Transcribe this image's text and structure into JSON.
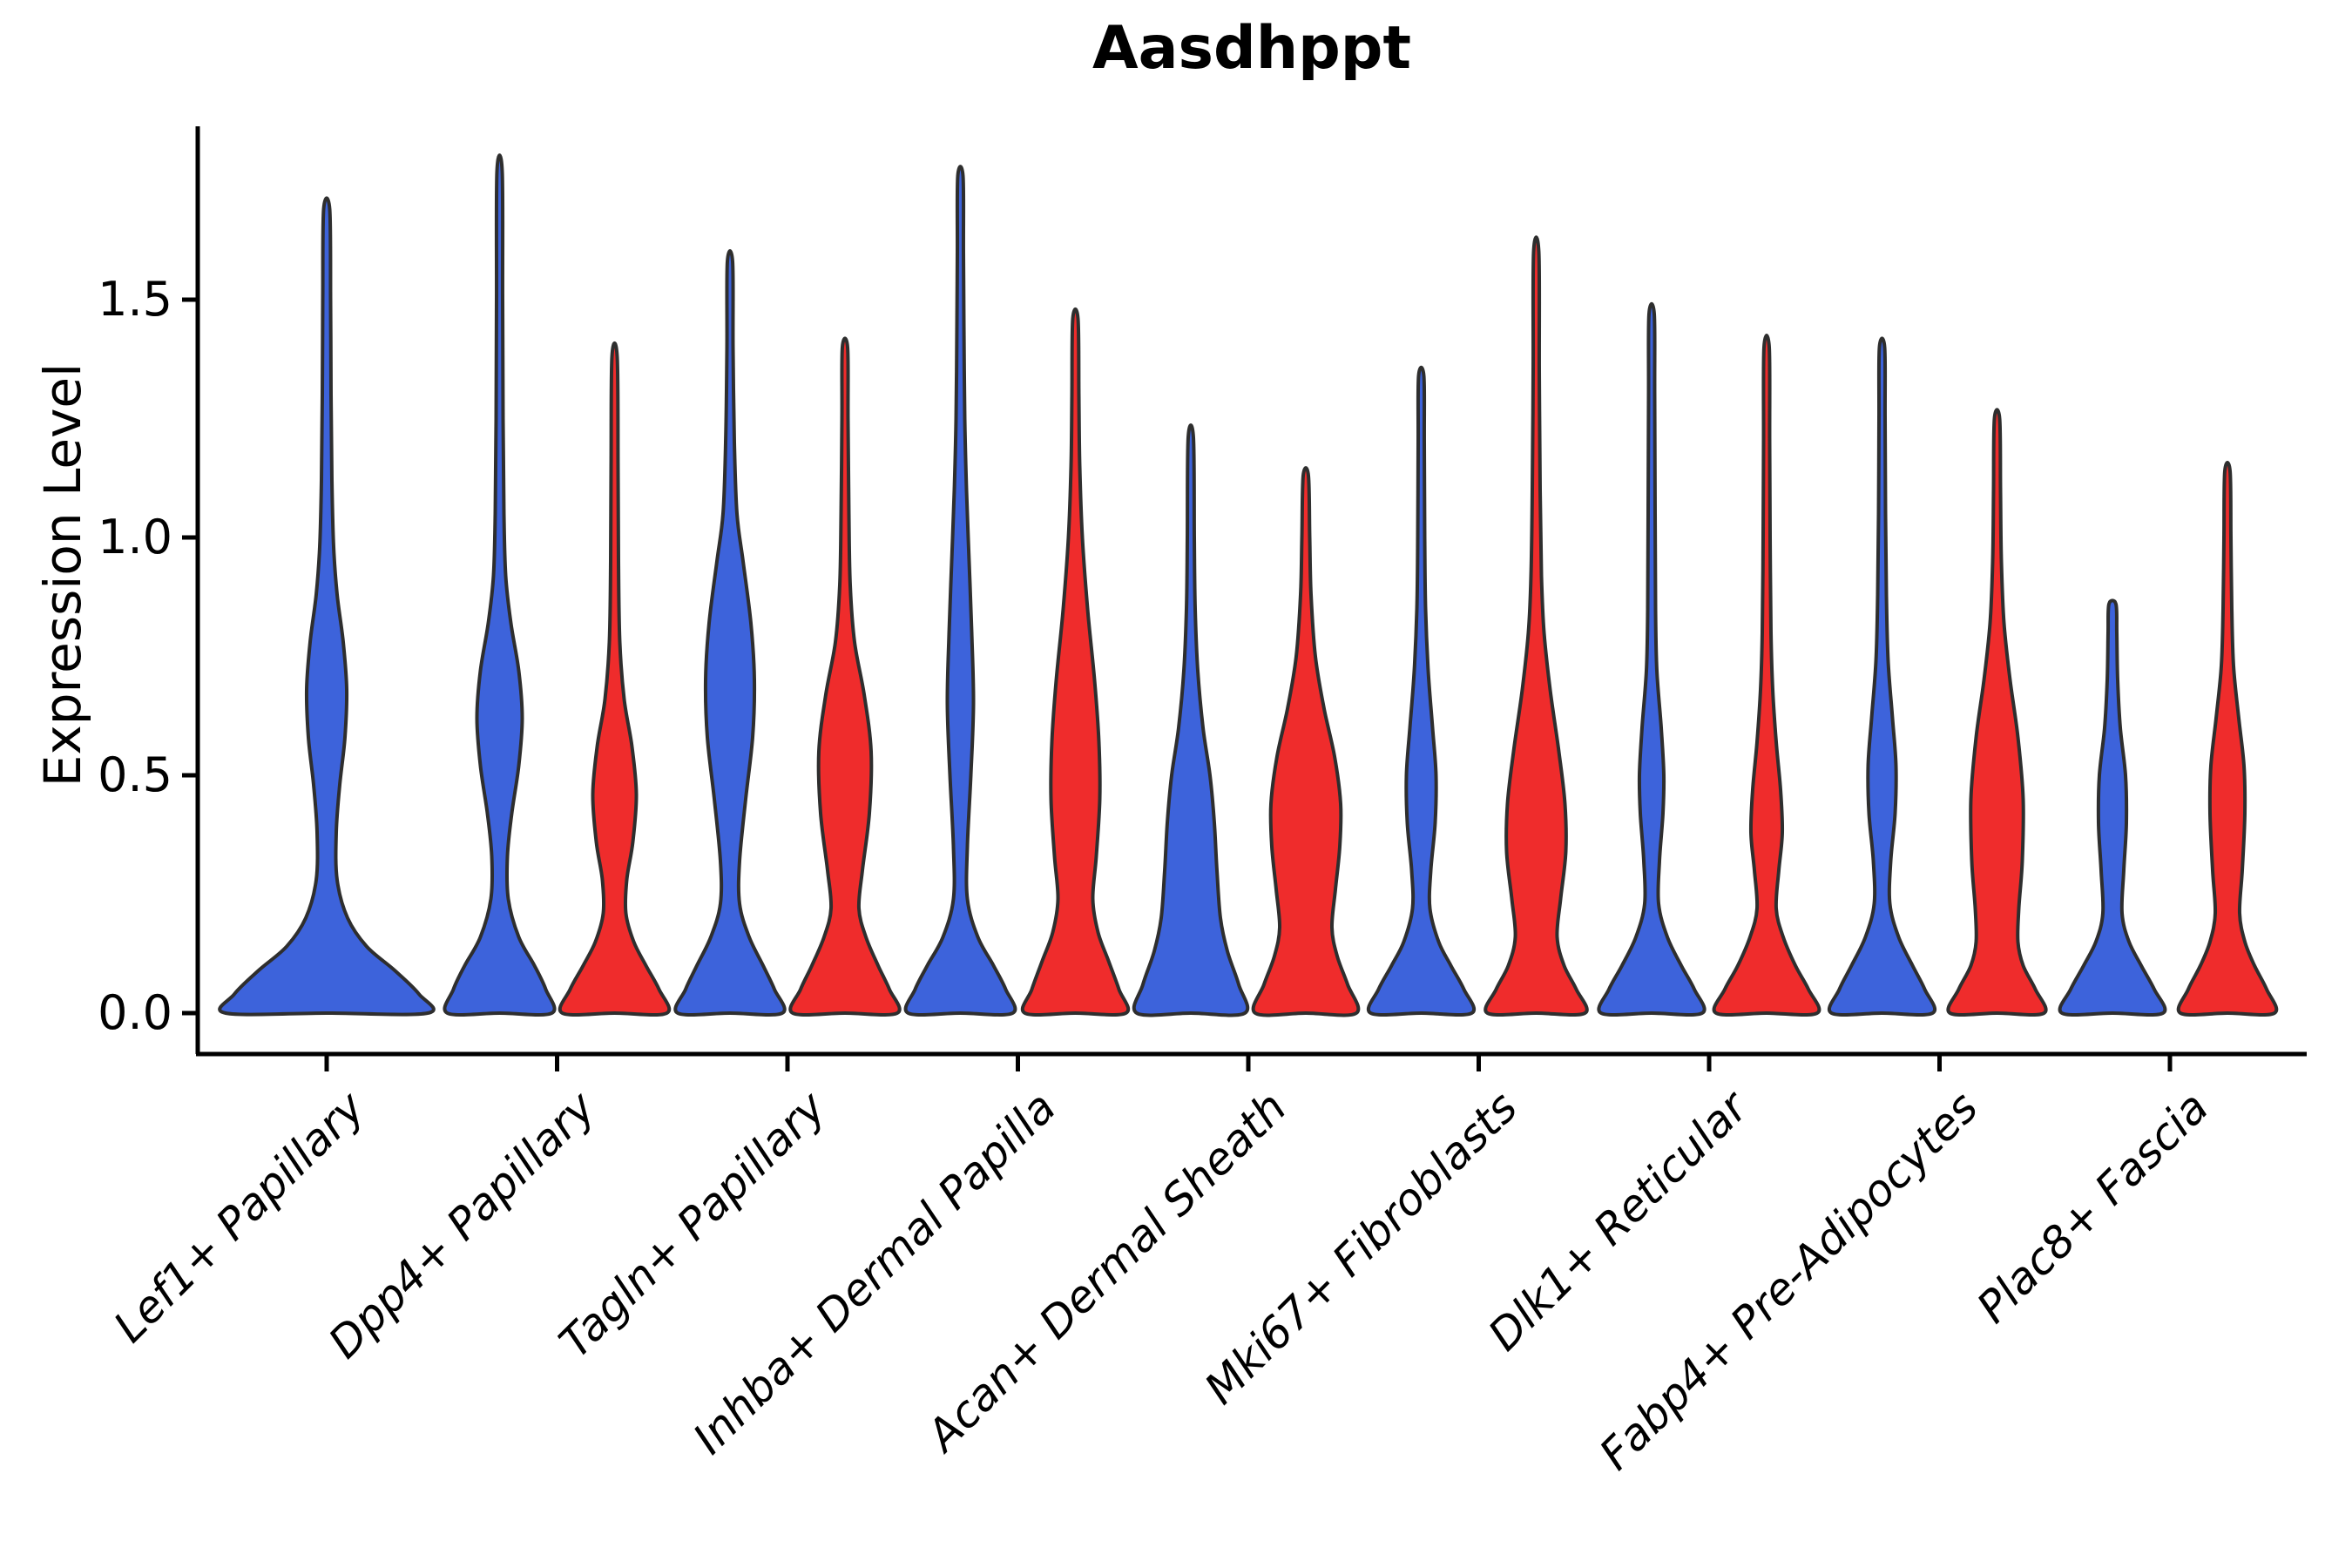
{
  "figure": {
    "title": "Aasdhppt",
    "ylabel": "Expression Level"
  },
  "chart_data": {
    "type": "violin",
    "title": "Aasdhppt",
    "xlabel": "",
    "ylabel": "Expression Level",
    "ylim": [
      -0.09,
      1.86
    ],
    "grid": false,
    "legend": "none",
    "x_tick_rotation": 45,
    "yticks": [
      {
        "value": 0.0,
        "label": "0.0"
      },
      {
        "value": 0.5,
        "label": "0.5"
      },
      {
        "value": 1.0,
        "label": "1.0"
      },
      {
        "value": 1.5,
        "label": "1.5"
      }
    ],
    "categories": [
      "Lef1+ Papillary",
      "Dpp4+ Papillary",
      "Tagln+ Papillary",
      "Inhba+ Dermal Papilla",
      "Acan+ Dermal Sheath",
      "Mki67+ Fibroblasts",
      "Dlk1+ Reticular",
      "Fabp4+ Pre-Adipocytes",
      "Plac8+ Fascia"
    ],
    "groups": [
      {
        "id": "blue",
        "color": "#3D63DB"
      },
      {
        "id": "red",
        "color": "#EF2C2C"
      }
    ],
    "style": {
      "edge_color": "#2E2E2E",
      "axis_color": "#000000",
      "background": "#FFFFFF"
    },
    "violins": [
      {
        "category_index": 0,
        "group": "blue",
        "slot": "full",
        "max_expression": 1.69,
        "profile": [
          [
            0,
            116
          ],
          [
            0.04,
            106
          ],
          [
            0.09,
            78
          ],
          [
            0.14,
            46
          ],
          [
            0.2,
            24
          ],
          [
            0.28,
            12
          ],
          [
            0.38,
            11
          ],
          [
            0.48,
            15
          ],
          [
            0.58,
            21
          ],
          [
            0.68,
            23
          ],
          [
            0.78,
            19
          ],
          [
            0.88,
            12
          ],
          [
            0.98,
            8
          ],
          [
            1.12,
            6
          ],
          [
            1.3,
            5
          ],
          [
            1.5,
            4.5
          ],
          [
            1.69,
            3.5
          ]
        ]
      },
      {
        "category_index": 1,
        "group": "blue",
        "slot": "left",
        "max_expression": 1.77,
        "profile": [
          [
            0,
            60
          ],
          [
            0.05,
            53
          ],
          [
            0.1,
            40
          ],
          [
            0.16,
            22
          ],
          [
            0.24,
            10
          ],
          [
            0.33,
            9
          ],
          [
            0.42,
            14
          ],
          [
            0.52,
            22
          ],
          [
            0.62,
            26
          ],
          [
            0.72,
            22
          ],
          [
            0.82,
            13
          ],
          [
            0.92,
            7
          ],
          [
            1.05,
            5
          ],
          [
            1.25,
            4
          ],
          [
            1.5,
            3.5
          ],
          [
            1.77,
            3
          ]
        ]
      },
      {
        "category_index": 1,
        "group": "red",
        "slot": "right",
        "max_expression": 1.38,
        "profile": [
          [
            0,
            60
          ],
          [
            0.05,
            51
          ],
          [
            0.1,
            36
          ],
          [
            0.15,
            22
          ],
          [
            0.21,
            13
          ],
          [
            0.28,
            14
          ],
          [
            0.36,
            21
          ],
          [
            0.46,
            25
          ],
          [
            0.56,
            20
          ],
          [
            0.66,
            11
          ],
          [
            0.78,
            6
          ],
          [
            0.95,
            4.5
          ],
          [
            1.15,
            4
          ],
          [
            1.38,
            3
          ]
        ]
      },
      {
        "category_index": 2,
        "group": "blue",
        "slot": "left",
        "max_expression": 1.58,
        "profile": [
          [
            0,
            60
          ],
          [
            0.05,
            51
          ],
          [
            0.1,
            38
          ],
          [
            0.16,
            22
          ],
          [
            0.23,
            11
          ],
          [
            0.32,
            11
          ],
          [
            0.45,
            18
          ],
          [
            0.58,
            26
          ],
          [
            0.7,
            28
          ],
          [
            0.82,
            24
          ],
          [
            0.95,
            15
          ],
          [
            1.05,
            8
          ],
          [
            1.2,
            5
          ],
          [
            1.4,
            3.5
          ],
          [
            1.58,
            3
          ]
        ]
      },
      {
        "category_index": 2,
        "group": "red",
        "slot": "right",
        "max_expression": 1.4,
        "profile": [
          [
            0,
            60
          ],
          [
            0.05,
            51
          ],
          [
            0.1,
            38
          ],
          [
            0.16,
            24
          ],
          [
            0.22,
            16
          ],
          [
            0.3,
            20
          ],
          [
            0.42,
            28
          ],
          [
            0.55,
            30
          ],
          [
            0.67,
            22
          ],
          [
            0.78,
            11
          ],
          [
            0.9,
            6
          ],
          [
            1.05,
            4.5
          ],
          [
            1.25,
            3.5
          ],
          [
            1.4,
            3
          ]
        ]
      },
      {
        "category_index": 3,
        "group": "blue",
        "slot": "left",
        "max_expression": 1.76,
        "profile": [
          [
            0,
            60
          ],
          [
            0.05,
            52
          ],
          [
            0.1,
            38
          ],
          [
            0.16,
            20
          ],
          [
            0.24,
            8
          ],
          [
            0.35,
            8
          ],
          [
            0.5,
            12
          ],
          [
            0.65,
            15
          ],
          [
            0.8,
            13
          ],
          [
            0.95,
            10
          ],
          [
            1.1,
            7
          ],
          [
            1.25,
            5
          ],
          [
            1.45,
            4
          ],
          [
            1.6,
            3.5
          ],
          [
            1.76,
            3
          ]
        ]
      },
      {
        "category_index": 3,
        "group": "red",
        "slot": "right",
        "max_expression": 1.46,
        "profile": [
          [
            0,
            58
          ],
          [
            0.05,
            50
          ],
          [
            0.11,
            38
          ],
          [
            0.17,
            26
          ],
          [
            0.24,
            20
          ],
          [
            0.33,
            24
          ],
          [
            0.45,
            28
          ],
          [
            0.57,
            27
          ],
          [
            0.7,
            22
          ],
          [
            0.85,
            14
          ],
          [
            1.0,
            8
          ],
          [
            1.15,
            5
          ],
          [
            1.3,
            4
          ],
          [
            1.46,
            3
          ]
        ]
      },
      {
        "category_index": 4,
        "group": "blue",
        "slot": "left",
        "max_expression": 1.21,
        "profile": [
          [
            0,
            62
          ],
          [
            0.06,
            55
          ],
          [
            0.13,
            42
          ],
          [
            0.2,
            34
          ],
          [
            0.3,
            30
          ],
          [
            0.4,
            27
          ],
          [
            0.5,
            22
          ],
          [
            0.6,
            14
          ],
          [
            0.72,
            8
          ],
          [
            0.85,
            5
          ],
          [
            1.0,
            4
          ],
          [
            1.21,
            3
          ]
        ]
      },
      {
        "category_index": 4,
        "group": "red",
        "slot": "right",
        "max_expression": 1.13,
        "profile": [
          [
            0,
            58
          ],
          [
            0.06,
            48
          ],
          [
            0.12,
            36
          ],
          [
            0.18,
            30
          ],
          [
            0.26,
            34
          ],
          [
            0.35,
            39
          ],
          [
            0.44,
            40
          ],
          [
            0.54,
            33
          ],
          [
            0.64,
            21
          ],
          [
            0.75,
            11
          ],
          [
            0.88,
            6
          ],
          [
            1.0,
            4.5
          ],
          [
            1.13,
            3
          ]
        ]
      },
      {
        "category_index": 5,
        "group": "blue",
        "slot": "left",
        "max_expression": 1.34,
        "profile": [
          [
            0,
            58
          ],
          [
            0.05,
            49
          ],
          [
            0.1,
            34
          ],
          [
            0.15,
            20
          ],
          [
            0.22,
            10
          ],
          [
            0.3,
            11
          ],
          [
            0.4,
            16
          ],
          [
            0.5,
            17
          ],
          [
            0.6,
            13
          ],
          [
            0.72,
            8
          ],
          [
            0.85,
            5
          ],
          [
            1.0,
            4
          ],
          [
            1.2,
            3.5
          ],
          [
            1.34,
            3
          ]
        ]
      },
      {
        "category_index": 5,
        "group": "red",
        "slot": "right",
        "max_expression": 1.6,
        "profile": [
          [
            0,
            56
          ],
          [
            0.05,
            46
          ],
          [
            0.1,
            32
          ],
          [
            0.16,
            24
          ],
          [
            0.24,
            28
          ],
          [
            0.34,
            34
          ],
          [
            0.44,
            33
          ],
          [
            0.55,
            26
          ],
          [
            0.68,
            16
          ],
          [
            0.8,
            9
          ],
          [
            0.92,
            6
          ],
          [
            1.1,
            4.5
          ],
          [
            1.35,
            3.5
          ],
          [
            1.6,
            3
          ]
        ]
      },
      {
        "category_index": 6,
        "group": "blue",
        "slot": "left",
        "max_expression": 1.47,
        "profile": [
          [
            0,
            58
          ],
          [
            0.05,
            49
          ],
          [
            0.1,
            34
          ],
          [
            0.16,
            18
          ],
          [
            0.23,
            8
          ],
          [
            0.32,
            9
          ],
          [
            0.42,
            13
          ],
          [
            0.5,
            14
          ],
          [
            0.6,
            11
          ],
          [
            0.72,
            6
          ],
          [
            0.85,
            4.5
          ],
          [
            1.05,
            4
          ],
          [
            1.3,
            3.5
          ],
          [
            1.47,
            3
          ]
        ]
      },
      {
        "category_index": 6,
        "group": "red",
        "slot": "right",
        "max_expression": 1.4,
        "profile": [
          [
            0,
            58
          ],
          [
            0.05,
            48
          ],
          [
            0.1,
            33
          ],
          [
            0.16,
            19
          ],
          [
            0.22,
            11
          ],
          [
            0.3,
            14
          ],
          [
            0.38,
            18
          ],
          [
            0.47,
            16
          ],
          [
            0.57,
            11
          ],
          [
            0.68,
            7
          ],
          [
            0.8,
            5
          ],
          [
            1.0,
            4
          ],
          [
            1.2,
            3.5
          ],
          [
            1.4,
            3
          ]
        ]
      },
      {
        "category_index": 7,
        "group": "blue",
        "slot": "left",
        "max_expression": 1.4,
        "profile": [
          [
            0,
            58
          ],
          [
            0.05,
            49
          ],
          [
            0.1,
            35
          ],
          [
            0.16,
            19
          ],
          [
            0.23,
            9
          ],
          [
            0.32,
            10
          ],
          [
            0.42,
            15
          ],
          [
            0.52,
            16
          ],
          [
            0.62,
            12
          ],
          [
            0.74,
            7
          ],
          [
            0.88,
            5
          ],
          [
            1.05,
            4
          ],
          [
            1.25,
            3.5
          ],
          [
            1.4,
            3
          ]
        ]
      },
      {
        "category_index": 7,
        "group": "red",
        "slot": "right",
        "max_expression": 1.25,
        "profile": [
          [
            0,
            54
          ],
          [
            0.05,
            44
          ],
          [
            0.1,
            30
          ],
          [
            0.15,
            24
          ],
          [
            0.22,
            25
          ],
          [
            0.32,
            29
          ],
          [
            0.45,
            30
          ],
          [
            0.58,
            24
          ],
          [
            0.7,
            15
          ],
          [
            0.82,
            8
          ],
          [
            0.95,
            5
          ],
          [
            1.1,
            4
          ],
          [
            1.25,
            3
          ]
        ]
      },
      {
        "category_index": 8,
        "group": "blue",
        "slot": "left",
        "max_expression": 0.86,
        "profile": [
          [
            0,
            58
          ],
          [
            0.05,
            48
          ],
          [
            0.1,
            33
          ],
          [
            0.15,
            19
          ],
          [
            0.21,
            11
          ],
          [
            0.3,
            13
          ],
          [
            0.4,
            16
          ],
          [
            0.5,
            15
          ],
          [
            0.6,
            9
          ],
          [
            0.7,
            6
          ],
          [
            0.8,
            5
          ],
          [
            0.86,
            4
          ]
        ]
      },
      {
        "category_index": 8,
        "group": "red",
        "slot": "right",
        "max_expression": 1.14,
        "profile": [
          [
            0,
            54
          ],
          [
            0.05,
            45
          ],
          [
            0.1,
            31
          ],
          [
            0.15,
            20
          ],
          [
            0.21,
            14
          ],
          [
            0.3,
            17
          ],
          [
            0.42,
            20
          ],
          [
            0.52,
            19
          ],
          [
            0.62,
            13
          ],
          [
            0.73,
            7
          ],
          [
            0.85,
            5
          ],
          [
            1.0,
            4
          ],
          [
            1.14,
            3
          ]
        ]
      }
    ]
  }
}
